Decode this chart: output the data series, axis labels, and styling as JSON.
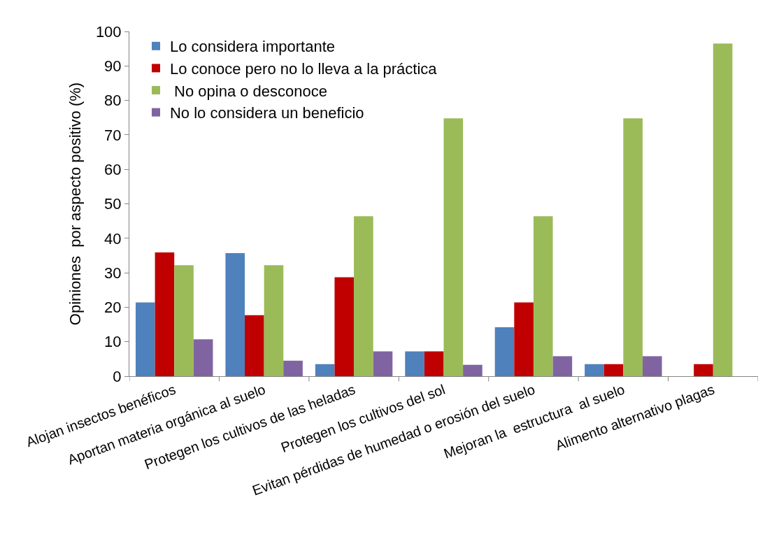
{
  "chart_data": {
    "type": "bar",
    "ylabel": "Opiniones  por aspecto positivo (%)",
    "categories": [
      "Alojan insectos benéficos",
      "Aportan materia orgánica al suelo",
      "Protegen los cultivos de las heladas",
      "Protegen los cultivos del sol",
      "Evitan pérdidas de humedad o erosión del suelo",
      "Mejoran la  estructura  al suelo",
      "Alimento alternativo plagas"
    ],
    "series": [
      {
        "name": "Lo considera importante",
        "color": "#4f81bd",
        "values": [
          21.4,
          35.7,
          3.5,
          7.2,
          14.2,
          3.5,
          0
        ]
      },
      {
        "name": "Lo conoce pero no lo lleva a la práctica",
        "color": "#c00000",
        "values": [
          35.9,
          17.7,
          28.7,
          7.2,
          21.4,
          3.5,
          3.5
        ]
      },
      {
        "name": " No opina o desconoce",
        "color": "#9bbb59",
        "values": [
          32.2,
          32.2,
          46.4,
          74.8,
          46.4,
          74.8,
          96.5
        ]
      },
      {
        "name": "No lo considera un beneficio",
        "color": "#8064a2",
        "values": [
          10.7,
          4.5,
          7.2,
          3.3,
          5.8,
          5.8,
          0
        ]
      }
    ],
    "ylim": [
      0,
      100
    ],
    "yticks": [
      0,
      10,
      20,
      30,
      40,
      50,
      60,
      70,
      80,
      90,
      100
    ],
    "legend": "top left"
  }
}
